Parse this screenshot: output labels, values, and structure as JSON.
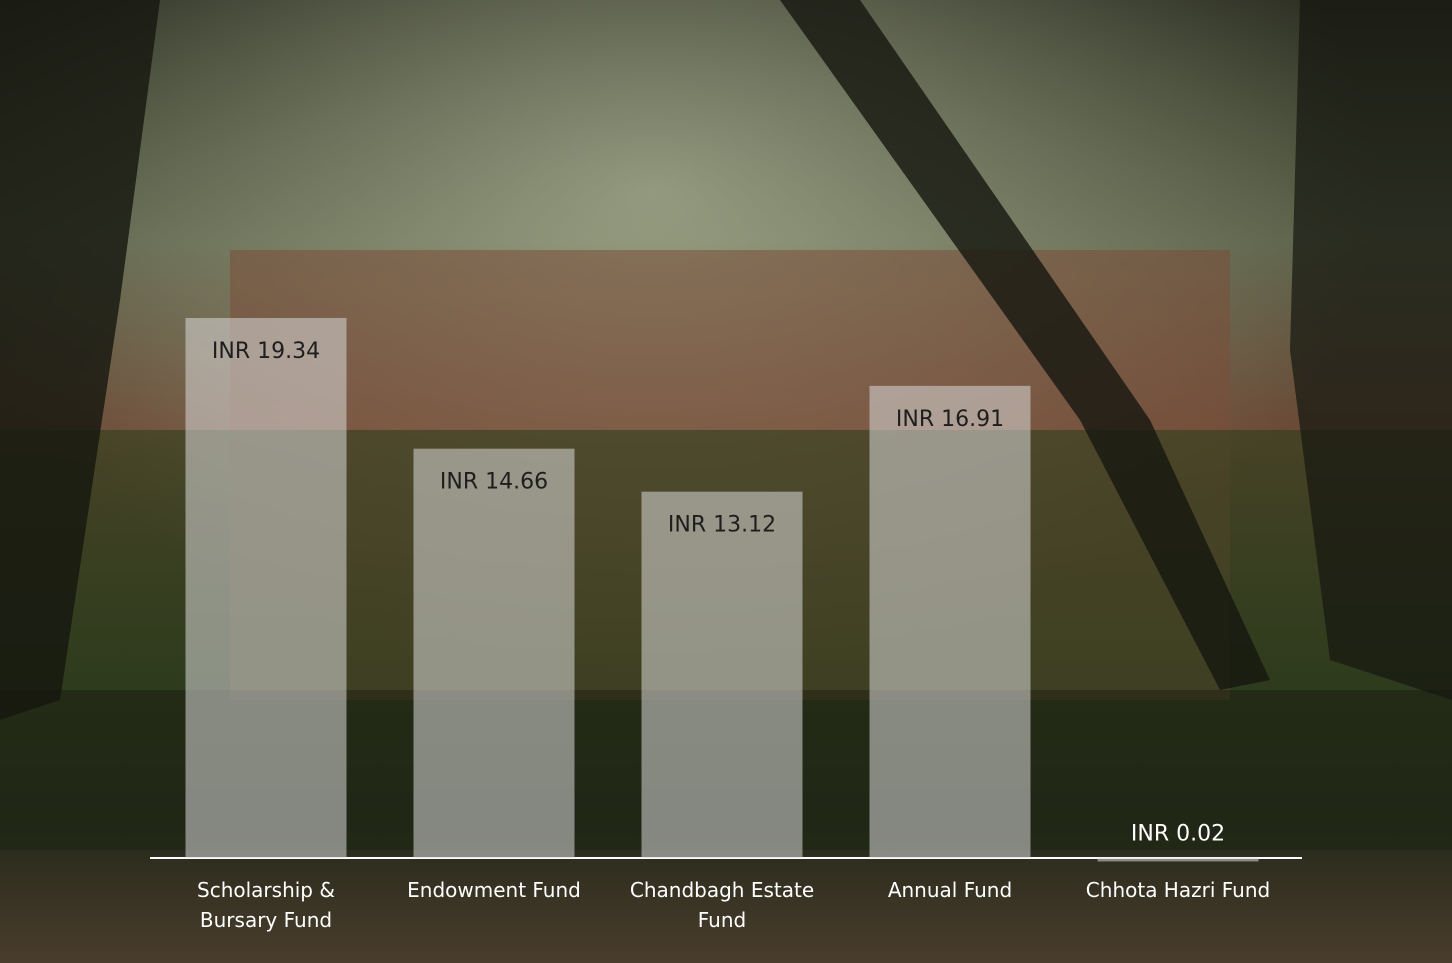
{
  "chart_data": {
    "type": "bar",
    "categories": [
      "Scholarship & Bursary Fund",
      "Endowment Fund",
      "Chandbagh Estate Fund",
      "Annual Fund",
      "Chhota Hazri Fund"
    ],
    "values": [
      19.34,
      14.66,
      13.12,
      16.91,
      0.02
    ],
    "value_labels": [
      "INR 19.34",
      "INR 14.66",
      "INR 13.12",
      "INR 16.91",
      "INR 0.02"
    ],
    "color": "#d9d9d9"
  }
}
